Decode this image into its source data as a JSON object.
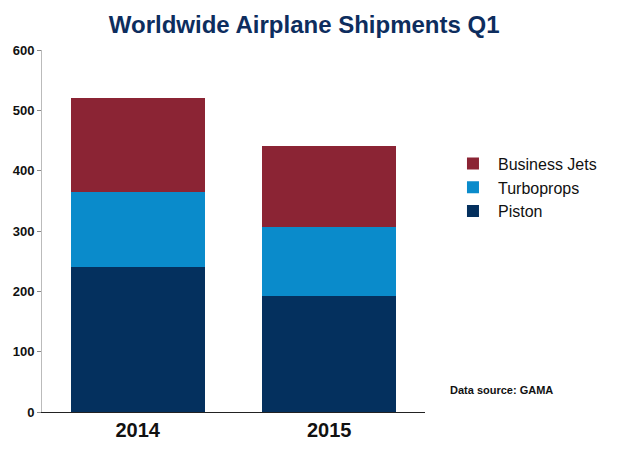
{
  "chart_data": {
    "type": "bar",
    "title": "Worldwide Airplane Shipments Q1",
    "categories": [
      "2014",
      "2015"
    ],
    "series": [
      {
        "name": "Piston",
        "color": "#04305e",
        "values": [
          240,
          193
        ]
      },
      {
        "name": "Turboprops",
        "color": "#0a8bcb",
        "values": [
          125,
          114
        ]
      },
      {
        "name": "Business Jets",
        "color": "#8b2434",
        "values": [
          155,
          134
        ]
      }
    ],
    "stacked": true,
    "ylim": [
      0,
      600
    ],
    "yticks": [
      0,
      100,
      200,
      300,
      400,
      500,
      600
    ],
    "grid": false,
    "legend": "right",
    "annotation": "Data source: GAMA"
  }
}
